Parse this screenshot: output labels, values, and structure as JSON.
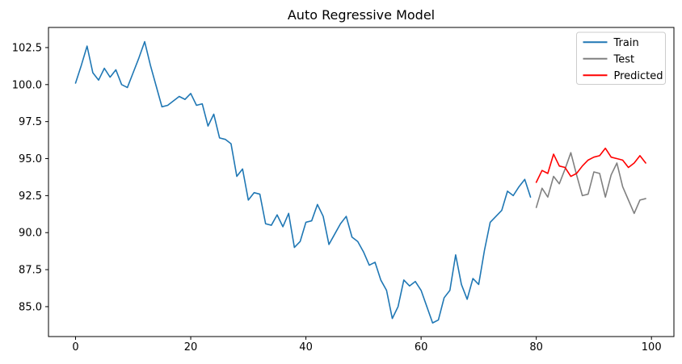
{
  "figure": {
    "title": "Auto Regressive Model",
    "background": "#ffffff"
  },
  "chart_data": {
    "type": "line",
    "title": "Auto Regressive Model",
    "xlabel": "",
    "ylabel": "",
    "grid": false,
    "xlim": [
      -4.7,
      103.9
    ],
    "ylim": [
      82.98,
      103.86
    ],
    "x_ticks": [
      0,
      20,
      40,
      60,
      80,
      100
    ],
    "y_ticks": [
      85.0,
      87.5,
      90.0,
      92.5,
      95.0,
      97.5,
      100.0,
      102.5
    ],
    "legend": {
      "position": "upper right",
      "entries": [
        "Train",
        "Test",
        "Predicted"
      ]
    },
    "series": [
      {
        "name": "Train",
        "color": "#1f77b4",
        "x_start": 0,
        "values": [
          100.1,
          101.3,
          102.6,
          100.8,
          100.3,
          101.1,
          100.5,
          101.0,
          100.0,
          99.8,
          100.8,
          101.8,
          102.9,
          101.3,
          99.9,
          98.5,
          98.6,
          98.9,
          99.2,
          99.0,
          99.4,
          98.6,
          98.7,
          97.2,
          98.0,
          96.4,
          96.3,
          96.0,
          93.8,
          94.3,
          92.2,
          92.7,
          92.6,
          90.6,
          90.5,
          91.2,
          90.4,
          91.3,
          89.0,
          89.4,
          90.7,
          90.8,
          91.9,
          91.1,
          89.2,
          89.9,
          90.6,
          91.1,
          89.7,
          89.4,
          88.7,
          87.8,
          88.0,
          86.8,
          86.1,
          84.2,
          85.0,
          86.8,
          86.4,
          86.7,
          86.1,
          85.0,
          83.9,
          84.1,
          85.6,
          86.1,
          88.5,
          86.5,
          85.5,
          86.9,
          86.5,
          88.8,
          90.7,
          91.1,
          91.5,
          92.8,
          92.5,
          93.1,
          93.6,
          92.4
        ]
      },
      {
        "name": "Test",
        "color": "#808080",
        "x_start": 80,
        "values": [
          91.7,
          93.0,
          92.4,
          93.8,
          93.3,
          94.3,
          95.4,
          93.9,
          92.5,
          92.6,
          94.1,
          94.0,
          92.4,
          93.9,
          94.7,
          93.1,
          92.2,
          91.3,
          92.2,
          92.3
        ]
      },
      {
        "name": "Predicted",
        "color": "#ff0000",
        "x_start": 80,
        "values": [
          93.4,
          94.2,
          94.0,
          95.3,
          94.5,
          94.4,
          93.8,
          94.0,
          94.5,
          94.9,
          95.1,
          95.2,
          95.7,
          95.1,
          95.0,
          94.9,
          94.4,
          94.7,
          95.2,
          94.7
        ]
      }
    ]
  },
  "style": {
    "spine_color": "#000000",
    "tick_color": "#000000",
    "legend_border_color": "#cccccc",
    "legend_bg_color": "#ffffff"
  }
}
